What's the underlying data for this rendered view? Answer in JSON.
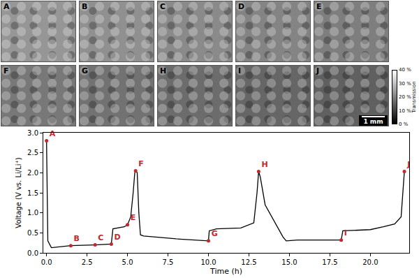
{
  "chart_data": {
    "type": "line",
    "x_label": "Time (h)",
    "y_label": "Voltage (V vs. Li/Li⁺)",
    "color": "#000000",
    "x": [
      0,
      0.08,
      0.3,
      1.5,
      3.0,
      4.0,
      4.1,
      4.8,
      5.0,
      5.2,
      5.35,
      5.45,
      5.5,
      5.6,
      5.7,
      5.8,
      6.0,
      8.0,
      10.0,
      10.05,
      10.5,
      12.0,
      12.8,
      13.0,
      13.1,
      13.2,
      13.5,
      14.2,
      14.6,
      14.8,
      15.5,
      17.0,
      18.2,
      18.3,
      20.0,
      20.8,
      21.5,
      21.9,
      22.0,
      22.1
    ],
    "values": [
      2.8,
      0.3,
      0.13,
      0.18,
      0.2,
      0.22,
      0.6,
      0.65,
      0.7,
      0.9,
      1.5,
      2.0,
      2.05,
      2.0,
      1.0,
      0.45,
      0.42,
      0.35,
      0.3,
      0.55,
      0.6,
      0.62,
      0.75,
      1.5,
      2.03,
      1.9,
      1.2,
      0.7,
      0.4,
      0.3,
      0.32,
      0.32,
      0.32,
      0.55,
      0.58,
      0.65,
      0.72,
      0.9,
      1.5,
      2.03
    ],
    "xlim": [
      -0.2,
      22.4
    ],
    "xticks": [
      {
        "value": 0,
        "label": "0.0"
      },
      2.5,
      {
        "value": 5,
        "label": "5.0"
      },
      7.5,
      {
        "value": 10,
        "label": "10.0"
      },
      12.5,
      {
        "value": 15,
        "label": "15.0"
      },
      17.5,
      {
        "value": 20,
        "label": "20.0"
      }
    ],
    "ylim": [
      0,
      3
    ],
    "yticks": [
      {
        "value": 0,
        "label": "0.0"
      },
      0.5,
      {
        "value": 1,
        "label": "1.0"
      },
      1.5,
      {
        "value": 2,
        "label": "2.0"
      },
      2.5,
      {
        "value": 3,
        "label": "3.0"
      }
    ],
    "grid": false,
    "points": {
      "labels": [
        "A",
        "B",
        "C",
        "D",
        "E",
        "F",
        "G",
        "H",
        "I",
        "J"
      ],
      "x": [
        0,
        1.5,
        3.0,
        4.0,
        5.0,
        5.5,
        10.0,
        13.1,
        18.2,
        22.1
      ],
      "values": [
        2.8,
        0.18,
        0.2,
        0.22,
        0.7,
        2.05,
        0.3,
        2.03,
        0.32,
        2.03
      ],
      "color": "#c0282d",
      "marker": "circle"
    },
    "panels": {
      "labels": [
        "A",
        "B",
        "C",
        "D",
        "E",
        "F",
        "G",
        "H",
        "I",
        "J"
      ],
      "scale_bar": "1 mm",
      "colorbar": {
        "title": "Transmission",
        "range": [
          0,
          40
        ],
        "ticks": [
          {
            "value": 40,
            "label": "40 %"
          },
          {
            "value": 30,
            "label": "30 %"
          },
          {
            "value": 20,
            "label": "20 %"
          },
          {
            "value": 10,
            "label": "10 %"
          },
          {
            "value": 0,
            "label": "0 %"
          }
        ]
      }
    }
  }
}
